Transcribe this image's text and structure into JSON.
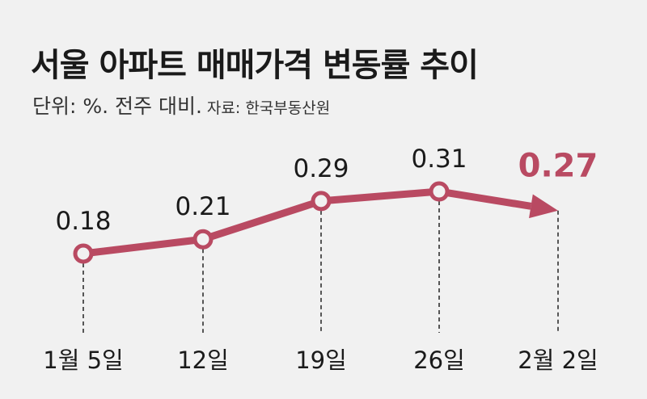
{
  "title": "서울 아파트 매매가격 변동률 추이",
  "subtitle": "단위: %. 전주 대비.",
  "source": "자료: 한국부동산원",
  "colors": {
    "line": "#b94a62",
    "highlight": "#b94a62",
    "text": "#1a1a1a"
  },
  "chart_data": {
    "type": "line",
    "categories": [
      "1월 5일",
      "12일",
      "19일",
      "26일",
      "2월 2일"
    ],
    "values": [
      0.18,
      0.21,
      0.29,
      0.31,
      0.27
    ],
    "labels": [
      "0.18",
      "0.21",
      "0.29",
      "0.31",
      "0.27"
    ],
    "highlight_last": true,
    "grid": false
  }
}
